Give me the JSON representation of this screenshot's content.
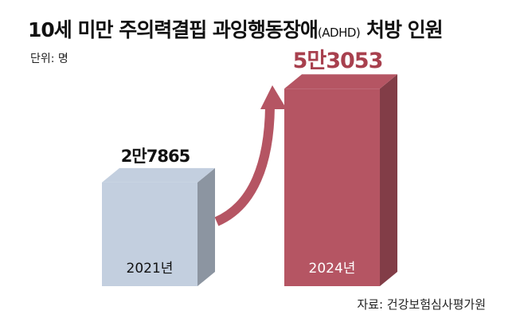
{
  "header": {
    "title_main": "10세 미만 주의력결핍 과잉행동장애",
    "title_paren": "(ADHD)",
    "title_tail": " 처방 인원",
    "unit": "단위: 명"
  },
  "footer": {
    "source": "자료: 건강보험심사평가원"
  },
  "chart_data": {
    "type": "bar",
    "title": "10세 미만 주의력결핍 과잉행동장애(ADHD) 처방 인원",
    "unit": "명",
    "categories": [
      "2021년",
      "2024년"
    ],
    "values": [
      27865,
      53053
    ],
    "value_labels": [
      "2만7865",
      "5만3053"
    ],
    "colors": [
      "#c3cfdf",
      "#b55563"
    ],
    "label_colors": [
      "#111111",
      "#a8404e"
    ],
    "arrow_color": "#b55563"
  }
}
